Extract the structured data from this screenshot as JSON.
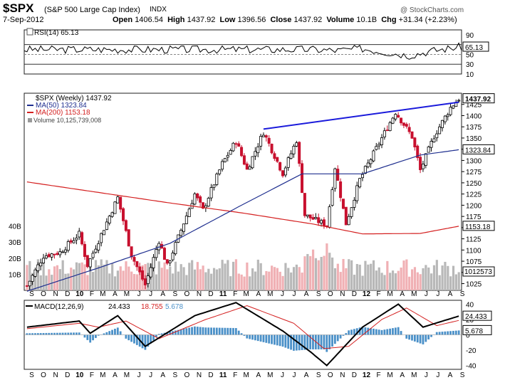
{
  "header": {
    "symbol": "$SPX",
    "name": "(S&P 500 Large Cap Index)",
    "exchange": "INDX",
    "watermark": "@ StockCharts.com",
    "date": "7-Sep-2012",
    "open_label": "Open",
    "open": "1406.54",
    "high_label": "High",
    "high": "1437.92",
    "low_label": "Low",
    "low": "1396.56",
    "close_label": "Close",
    "close": "1437.92",
    "volume_label": "Volume",
    "volume": "10.1B",
    "chg_label": "Chg",
    "chg": "+31.34 (+2.23%)"
  },
  "colors": {
    "up": "#000000",
    "down": "#c8102e",
    "ma50": "#1f2f8f",
    "ma200": "#d42020",
    "trendline": "#1a1adb",
    "volume_up": "#b8b8b8",
    "volume_down": "#f0b0b4",
    "hist": "#4a90c8",
    "frame": "#1c1c1c"
  },
  "chart_data": [
    {
      "type": "line",
      "panel": "rsi",
      "label": "RSI(14) 65.13",
      "last_value": "65.13",
      "ylim": [
        10,
        100
      ],
      "ticks": [
        "90",
        "70",
        "50",
        "30",
        "10"
      ],
      "reference_lines": [
        70,
        50,
        30
      ],
      "x": [
        "2011-09-02",
        "2011-11-04",
        "2012-01-06",
        "2012-03-02",
        "2012-05-04",
        "2012-07-06",
        "2012-09-07"
      ],
      "values": [
        60,
        58,
        62,
        55,
        48,
        58,
        65.13
      ]
    },
    {
      "type": "candlestick",
      "panel": "price",
      "label": "$SPX (Weekly) 1437.92",
      "ylim": [
        1010,
        1450
      ],
      "ticks": [
        "1425",
        "1400",
        "1375",
        "1350",
        "1325",
        "1300",
        "1275",
        "1250",
        "1225",
        "1200",
        "1175",
        "1150",
        "1125",
        "1100",
        "1075",
        "1050",
        "1025"
      ],
      "last_labels": [
        "1437.92",
        "1323.84",
        "1153.18"
      ],
      "x_ticks": [
        "S",
        "O",
        "N",
        "D",
        "10",
        "F",
        "M",
        "A",
        "M",
        "J",
        "J",
        "A",
        "S",
        "O",
        "N",
        "D",
        "11",
        "F",
        "M",
        "A",
        "M",
        "J",
        "J",
        "A",
        "S",
        "O",
        "N",
        "D",
        "12",
        "F",
        "M",
        "A",
        "M",
        "J",
        "J",
        "A",
        "S"
      ],
      "anchors": [
        [
          "2009-09-04",
          1020
        ],
        [
          "2009-10-16",
          1087
        ],
        [
          "2009-11-27",
          1095
        ],
        [
          "2010-01-15",
          1136
        ],
        [
          "2010-02-05",
          1066
        ],
        [
          "2010-04-23",
          1217
        ],
        [
          "2010-05-28",
          1089
        ],
        [
          "2010-07-02",
          1022
        ],
        [
          "2010-08-06",
          1121
        ],
        [
          "2010-08-27",
          1064
        ],
        [
          "2010-11-05",
          1225
        ],
        [
          "2010-11-26",
          1189
        ],
        [
          "2011-01-14",
          1293
        ],
        [
          "2011-02-18",
          1343
        ],
        [
          "2011-03-18",
          1279
        ],
        [
          "2011-04-29",
          1363
        ],
        [
          "2011-06-17",
          1271
        ],
        [
          "2011-07-22",
          1345
        ],
        [
          "2011-08-12",
          1178
        ],
        [
          "2011-10-07",
          1155
        ],
        [
          "2011-10-28",
          1285
        ],
        [
          "2011-11-25",
          1159
        ],
        [
          "2011-12-30",
          1257
        ],
        [
          "2012-03-30",
          1408
        ],
        [
          "2012-05-11",
          1353
        ],
        [
          "2012-06-01",
          1278
        ],
        [
          "2012-07-06",
          1354
        ],
        [
          "2012-08-17",
          1418
        ],
        [
          "2012-09-07",
          1437.92
        ]
      ]
    },
    {
      "type": "line",
      "panel": "price",
      "series": [
        {
          "name": "MA(50) 1323.84",
          "values": [
            [
              "2009-09-04",
              1008
            ],
            [
              "2010-03-05",
              1060
            ],
            [
              "2010-09-03",
              1115
            ],
            [
              "2011-03-04",
              1200
            ],
            [
              "2011-08-05",
              1270
            ],
            [
              "2012-01-06",
              1270
            ],
            [
              "2012-06-01",
              1312
            ],
            [
              "2012-09-07",
              1323.84
            ]
          ]
        },
        {
          "name": "MA(200) 1153.18",
          "values": [
            [
              "2009-09-04",
              1252
            ],
            [
              "2010-09-03",
              1205
            ],
            [
              "2011-03-04",
              1183
            ],
            [
              "2011-09-02",
              1158
            ],
            [
              "2012-01-06",
              1136
            ],
            [
              "2012-06-01",
              1137
            ],
            [
              "2012-09-07",
              1153.18
            ]
          ]
        }
      ],
      "trendline": [
        [
          "2011-04-29",
          1370
        ],
        [
          "2012-09-07",
          1430
        ]
      ]
    },
    {
      "type": "bar",
      "panel": "volume",
      "label": "Volume 10,125,739,008",
      "last_value": "10125739008",
      "ticks": [
        "40B",
        "30B",
        "20B",
        "10B"
      ],
      "ylim": [
        0,
        42
      ],
      "typical_b": 14
    },
    {
      "type": "line",
      "panel": "macd",
      "label_prefix": "MACD(12,26,9)",
      "macd": "24.433",
      "signal": "18.755",
      "histogram": "5.678",
      "ylim": [
        -45,
        45
      ],
      "ticks": [
        "40",
        "20",
        "0",
        "-20",
        "-40"
      ],
      "series": [
        {
          "name": "MACD",
          "values": [
            [
              "2009-09-04",
              10
            ],
            [
              "2010-01-15",
              18
            ],
            [
              "2010-02-12",
              2
            ],
            [
              "2010-04-23",
              25
            ],
            [
              "2010-07-02",
              -15
            ],
            [
              "2010-11-05",
              25
            ],
            [
              "2011-02-18",
              42
            ],
            [
              "2011-06-17",
              5
            ],
            [
              "2011-08-26",
              -22
            ],
            [
              "2011-10-07",
              -40
            ],
            [
              "2012-01-06",
              10
            ],
            [
              "2012-04-06",
              40
            ],
            [
              "2012-06-08",
              10
            ],
            [
              "2012-09-07",
              24.433
            ]
          ]
        },
        {
          "name": "Signal",
          "values": [
            [
              "2009-09-04",
              8
            ],
            [
              "2010-01-15",
              15
            ],
            [
              "2010-03-05",
              10
            ],
            [
              "2010-05-14",
              18
            ],
            [
              "2010-08-06",
              -5
            ],
            [
              "2010-12-03",
              20
            ],
            [
              "2011-03-18",
              38
            ],
            [
              "2011-07-15",
              15
            ],
            [
              "2011-09-30",
              -18
            ],
            [
              "2011-12-02",
              -15
            ],
            [
              "2012-02-24",
              20
            ],
            [
              "2012-04-27",
              35
            ],
            [
              "2012-07-13",
              12
            ],
            [
              "2012-09-07",
              18.755
            ]
          ]
        }
      ]
    }
  ]
}
